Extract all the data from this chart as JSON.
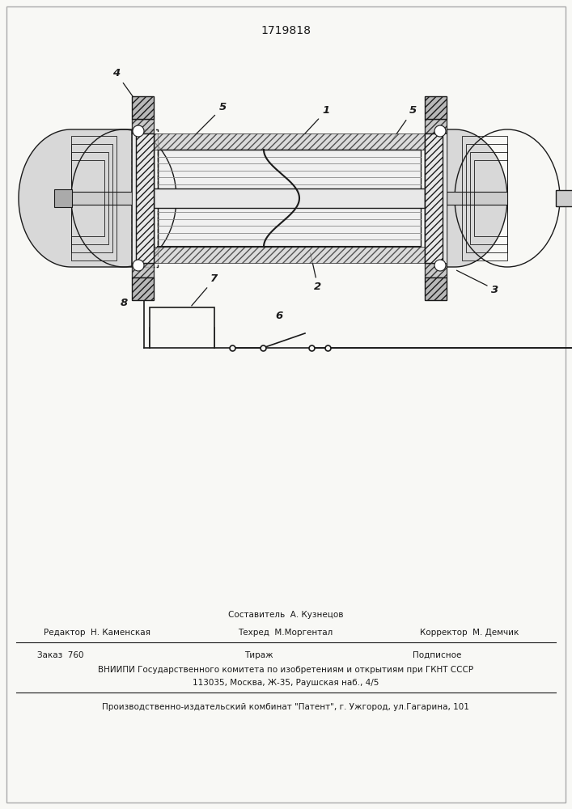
{
  "patent_number": "1719818",
  "bg": "#f8f8f5",
  "lc": "#1a1a1a",
  "hatch_color": "#555555",
  "gray_fill": "#c8c8c8",
  "light_gray": "#e0e0e0",
  "white": "#ffffff",
  "footer": {
    "sestavitel_label": "Составитель  А. Кузнецов",
    "redaktor_label": "Редактор  Н. Каменская",
    "tehred_label": "Техред  М.Моргентал",
    "korrektor_label": "Корректор  М. Демчик",
    "zakaz": "Заказ  760",
    "tirazh": "Тираж",
    "podpisnoe": "Подписное",
    "vniiipi_line1": "ВНИИПИ Государственного комитета по изобретениям и открытиям при ГКНТ СССР",
    "vniiipi_line2": "113035, Москва, Ж-35, Раушская наб., 4/5",
    "proizv": "Производственно-издательский комбинат \"Патент\", г. Ужгород, ул.Гагарина, 101"
  }
}
